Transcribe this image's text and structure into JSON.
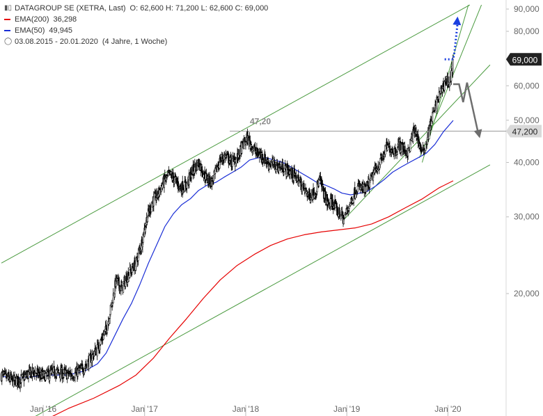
{
  "legend": {
    "instrument": "DATAGROUP SE (XETRA, Last)",
    "ohlc": "O: 62,600  H: 71,200  L: 62,600  C: 69,000",
    "ema200_label": "EMA(200)",
    "ema200_value": "36,298",
    "ema50_label": "EMA(50)",
    "ema50_value": "49,945",
    "period": "03.08.2015 - 20.01.2020",
    "duration": "(4 Jahre, 1 Woche)"
  },
  "chart_data": {
    "type": "candlestick",
    "y_scale": "log",
    "ylim": [
      10,
      92
    ],
    "y_ticks": [
      {
        "value": 90,
        "label": "90,000"
      },
      {
        "value": 80,
        "label": "80,000"
      },
      {
        "value": 60,
        "label": "60,000"
      },
      {
        "value": 50,
        "label": "50,000"
      },
      {
        "value": 40,
        "label": "40,000"
      },
      {
        "value": 30,
        "label": "30,000"
      },
      {
        "value": 20,
        "label": "20,000"
      }
    ],
    "x_range": [
      "2015-08-03",
      "2020-01-20"
    ],
    "x_ticks": [
      {
        "date": "2016-01-01",
        "label": "Jan '16"
      },
      {
        "date": "2017-01-01",
        "label": "Jan '17"
      },
      {
        "date": "2018-01-01",
        "label": "Jan '18"
      },
      {
        "date": "2019-01-01",
        "label": "Jan '19"
      },
      {
        "date": "2020-01-01",
        "label": "Jan '20"
      }
    ],
    "last_price": {
      "value": 69.0,
      "label": "69,000"
    },
    "level": {
      "value": 47.2,
      "label": "47,20",
      "axis_label": "47,200"
    },
    "price_path": [
      [
        "2015-08-03",
        13.0
      ],
      [
        "2015-09-15",
        12.6
      ],
      [
        "2015-10-15",
        12.7
      ],
      [
        "2015-11-10",
        13.1
      ],
      [
        "2015-12-01",
        13.2
      ],
      [
        "2016-01-01",
        12.9
      ],
      [
        "2016-02-10",
        13.2
      ],
      [
        "2016-03-15",
        13.1
      ],
      [
        "2016-04-15",
        13.0
      ],
      [
        "2016-05-20",
        13.4
      ],
      [
        "2016-06-15",
        14.0
      ],
      [
        "2016-07-15",
        15.0
      ],
      [
        "2016-08-15",
        16.5
      ],
      [
        "2016-09-05",
        19.0
      ],
      [
        "2016-09-20",
        21.5
      ],
      [
        "2016-10-10",
        20.5
      ],
      [
        "2016-11-01",
        22.0
      ],
      [
        "2016-12-01",
        23.5
      ],
      [
        "2016-12-20",
        26.0
      ],
      [
        "2017-01-10",
        30.0
      ],
      [
        "2017-01-30",
        32.5
      ],
      [
        "2017-02-15",
        33.5
      ],
      [
        "2017-03-10",
        36.0
      ],
      [
        "2017-04-01",
        37.5
      ],
      [
        "2017-04-20",
        36.5
      ],
      [
        "2017-05-10",
        35.0
      ],
      [
        "2017-06-01",
        35.5
      ],
      [
        "2017-06-20",
        38.0
      ],
      [
        "2017-07-15",
        40.0
      ],
      [
        "2017-08-10",
        37.0
      ],
      [
        "2017-09-01",
        36.0
      ],
      [
        "2017-10-01",
        40.5
      ],
      [
        "2017-10-20",
        41.5
      ],
      [
        "2017-11-10",
        40.0
      ],
      [
        "2017-12-01",
        41.0
      ],
      [
        "2017-12-20",
        43.5
      ],
      [
        "2018-01-05",
        45.5
      ],
      [
        "2018-01-20",
        44.0
      ],
      [
        "2018-02-10",
        42.0
      ],
      [
        "2018-03-01",
        41.5
      ],
      [
        "2018-03-20",
        40.0
      ],
      [
        "2018-04-15",
        39.5
      ],
      [
        "2018-05-10",
        39.0
      ],
      [
        "2018-06-01",
        38.5
      ],
      [
        "2018-06-20",
        37.5
      ],
      [
        "2018-07-10",
        36.5
      ],
      [
        "2018-08-01",
        34.5
      ],
      [
        "2018-08-20",
        33.5
      ],
      [
        "2018-09-10",
        34.5
      ],
      [
        "2018-09-25",
        36.5
      ],
      [
        "2018-10-10",
        34.0
      ],
      [
        "2018-10-25",
        32.0
      ],
      [
        "2018-11-10",
        32.5
      ],
      [
        "2018-11-25",
        31.0
      ],
      [
        "2018-12-10",
        30.5
      ],
      [
        "2018-12-20",
        29.5
      ],
      [
        "2019-01-05",
        31.5
      ],
      [
        "2019-01-20",
        33.0
      ],
      [
        "2019-02-05",
        35.0
      ],
      [
        "2019-02-20",
        35.0
      ],
      [
        "2019-03-10",
        34.5
      ],
      [
        "2019-03-25",
        36.0
      ],
      [
        "2019-04-10",
        38.0
      ],
      [
        "2019-04-25",
        39.5
      ],
      [
        "2019-05-10",
        41.0
      ],
      [
        "2019-05-25",
        43.5
      ],
      [
        "2019-06-10",
        43.0
      ],
      [
        "2019-06-25",
        42.5
      ],
      [
        "2019-07-10",
        44.0
      ],
      [
        "2019-07-25",
        43.0
      ],
      [
        "2019-08-10",
        42.0
      ],
      [
        "2019-08-25",
        46.0
      ],
      [
        "2019-09-05",
        47.5
      ],
      [
        "2019-09-20",
        44.0
      ],
      [
        "2019-10-01",
        42.0
      ],
      [
        "2019-10-15",
        44.5
      ],
      [
        "2019-10-25",
        47.5
      ],
      [
        "2019-11-05",
        51.0
      ],
      [
        "2019-11-15",
        53.0
      ],
      [
        "2019-11-25",
        56.0
      ],
      [
        "2019-12-05",
        58.0
      ],
      [
        "2019-12-15",
        60.0
      ],
      [
        "2019-12-25",
        62.0
      ],
      [
        "2020-01-05",
        61.0
      ],
      [
        "2020-01-12",
        62.6
      ],
      [
        "2020-01-20",
        69.0
      ]
    ],
    "ema50": [
      [
        "2015-08-03",
        12.9
      ],
      [
        "2015-10-01",
        12.8
      ],
      [
        "2015-12-01",
        12.9
      ],
      [
        "2016-02-01",
        13.0
      ],
      [
        "2016-04-01",
        13.0
      ],
      [
        "2016-06-01",
        13.3
      ],
      [
        "2016-07-15",
        13.8
      ],
      [
        "2016-08-15",
        14.6
      ],
      [
        "2016-09-15",
        16.0
      ],
      [
        "2016-10-15",
        17.5
      ],
      [
        "2016-11-15",
        19.0
      ],
      [
        "2016-12-15",
        21.0
      ],
      [
        "2017-01-15",
        23.5
      ],
      [
        "2017-02-15",
        26.0
      ],
      [
        "2017-03-15",
        28.5
      ],
      [
        "2017-04-15",
        30.5
      ],
      [
        "2017-05-15",
        32.0
      ],
      [
        "2017-06-15",
        33.0
      ],
      [
        "2017-07-15",
        34.5
      ],
      [
        "2017-08-15",
        35.5
      ],
      [
        "2017-09-15",
        36.0
      ],
      [
        "2017-10-15",
        37.0
      ],
      [
        "2017-11-15",
        38.0
      ],
      [
        "2017-12-15",
        39.0
      ],
      [
        "2018-01-15",
        40.5
      ],
      [
        "2018-02-15",
        41.0
      ],
      [
        "2018-03-15",
        41.0
      ],
      [
        "2018-04-15",
        40.5
      ],
      [
        "2018-05-15",
        40.0
      ],
      [
        "2018-06-15",
        39.0
      ],
      [
        "2018-07-15",
        38.0
      ],
      [
        "2018-08-15",
        37.0
      ],
      [
        "2018-09-15",
        36.0
      ],
      [
        "2018-10-15",
        35.5
      ],
      [
        "2018-11-15",
        34.8
      ],
      [
        "2018-12-15",
        34.0
      ],
      [
        "2019-01-15",
        33.7
      ],
      [
        "2019-02-15",
        34.0
      ],
      [
        "2019-03-15",
        34.3
      ],
      [
        "2019-04-15",
        35.3
      ],
      [
        "2019-05-15",
        36.5
      ],
      [
        "2019-06-15",
        38.0
      ],
      [
        "2019-07-15",
        39.0
      ],
      [
        "2019-08-15",
        40.0
      ],
      [
        "2019-09-15",
        41.0
      ],
      [
        "2019-10-15",
        42.0
      ],
      [
        "2019-11-15",
        44.0
      ],
      [
        "2019-12-15",
        47.0
      ],
      [
        "2020-01-20",
        49.945
      ]
    ],
    "ema200": [
      [
        "2015-11-01",
        9.6
      ],
      [
        "2016-01-01",
        10.2
      ],
      [
        "2016-04-01",
        10.9
      ],
      [
        "2016-07-01",
        11.5
      ],
      [
        "2016-10-01",
        12.3
      ],
      [
        "2016-12-01",
        13.0
      ],
      [
        "2017-02-01",
        14.2
      ],
      [
        "2017-04-01",
        15.8
      ],
      [
        "2017-06-01",
        17.5
      ],
      [
        "2017-08-01",
        19.5
      ],
      [
        "2017-10-01",
        21.5
      ],
      [
        "2017-12-01",
        23.2
      ],
      [
        "2018-02-01",
        24.6
      ],
      [
        "2018-04-01",
        25.8
      ],
      [
        "2018-06-01",
        26.7
      ],
      [
        "2018-08-01",
        27.3
      ],
      [
        "2018-10-01",
        27.7
      ],
      [
        "2018-12-01",
        28.0
      ],
      [
        "2019-02-01",
        28.3
      ],
      [
        "2019-04-01",
        28.9
      ],
      [
        "2019-06-01",
        30.0
      ],
      [
        "2019-08-01",
        31.5
      ],
      [
        "2019-10-01",
        33.0
      ],
      [
        "2019-12-01",
        35.0
      ],
      [
        "2020-01-20",
        36.298
      ]
    ],
    "trendlines": [
      {
        "name": "channel-upper",
        "from": [
          "2015-08-03",
          23.5
        ],
        "to": [
          "2020-03-20",
          92.0
        ]
      },
      {
        "name": "channel-lower",
        "from": [
          "2015-09-15",
          9.8
        ],
        "to": [
          "2020-06-01",
          39.5
        ]
      },
      {
        "name": "trend-2019-a",
        "from": [
          "2018-12-20",
          29.5
        ],
        "to": [
          "2020-06-01",
          67.0
        ]
      },
      {
        "name": "trend-2019-b",
        "from": [
          "2019-09-20",
          41.0
        ],
        "to": [
          "2020-05-01",
          92.0
        ]
      },
      {
        "name": "trend-2019-c",
        "from": [
          "2019-09-30",
          40.0
        ],
        "to": [
          "2020-03-15",
          92.0
        ]
      }
    ],
    "annotations": {
      "projection_up_dotted": [
        [
          "2019-12-20",
          69.0
        ],
        [
          "2020-01-20",
          69.0
        ],
        [
          "2020-01-25",
          72.0
        ],
        [
          "2020-02-05",
          84.0
        ]
      ],
      "projection_down_gray": [
        [
          "2020-01-20",
          60.5
        ],
        [
          "2020-02-10",
          60.5
        ],
        [
          "2020-02-25",
          55.0
        ],
        [
          "2020-03-10",
          61.0
        ],
        [
          "2020-04-20",
          46.5
        ]
      ]
    },
    "colors": {
      "candles": "#000000",
      "ema200": "#e60000",
      "ema50": "#1a2ed6",
      "trendline": "#4a9a3f",
      "level": "#999999",
      "projection_up": "#1a3fe0",
      "projection_down": "#6e6e6e",
      "price_label_bg": "#222222",
      "level_label_bg": "#d9d9d9"
    }
  }
}
